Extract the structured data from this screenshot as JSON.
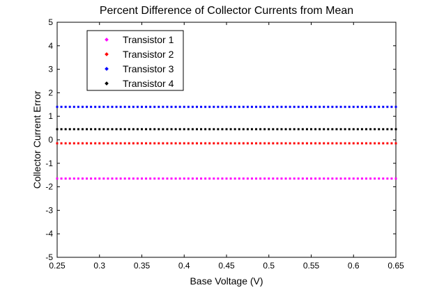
{
  "chart_data": {
    "type": "scatter",
    "title": "Percent Difference of Collector Currents from Mean",
    "xlabel": "Base Voltage (V)",
    "ylabel": "Collector Current Error",
    "xlim": [
      0.25,
      0.65
    ],
    "ylim": [
      -5,
      5
    ],
    "xticks": [
      "0.25",
      "0.3",
      "0.35",
      "0.4",
      "0.45",
      "0.5",
      "0.55",
      "0.6",
      "0.65"
    ],
    "yticks": [
      "-5",
      "-4",
      "-3",
      "-2",
      "-1",
      "0",
      "1",
      "2",
      "3",
      "4",
      "5"
    ],
    "grid": false,
    "legend_position": "top-left",
    "x_start": 0.25,
    "x_end": 0.65,
    "x_step": 0.005,
    "series": [
      {
        "name": "Transistor 1",
        "color": "#ff00ff",
        "y": -1.65
      },
      {
        "name": "Transistor 2",
        "color": "#ff0000",
        "y": -0.15
      },
      {
        "name": "Transistor 3",
        "color": "#0000ff",
        "y": 1.4
      },
      {
        "name": "Transistor 4",
        "color": "#000000",
        "y": 0.45
      }
    ]
  }
}
